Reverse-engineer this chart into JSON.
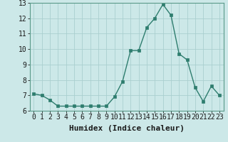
{
  "x": [
    0,
    1,
    2,
    3,
    4,
    5,
    6,
    7,
    8,
    9,
    10,
    11,
    12,
    13,
    14,
    15,
    16,
    17,
    18,
    19,
    20,
    21,
    22,
    23
  ],
  "y": [
    7.1,
    7.0,
    6.7,
    6.3,
    6.3,
    6.3,
    6.3,
    6.3,
    6.3,
    6.3,
    6.9,
    7.9,
    9.9,
    9.9,
    11.4,
    12.0,
    12.9,
    12.2,
    9.7,
    9.3,
    7.5,
    6.6,
    7.6,
    7.0
  ],
  "xlabel": "Humidex (Indice chaleur)",
  "ylim": [
    6,
    13
  ],
  "xlim": [
    -0.5,
    23.5
  ],
  "yticks": [
    6,
    7,
    8,
    9,
    10,
    11,
    12,
    13
  ],
  "xticks": [
    0,
    1,
    2,
    3,
    4,
    5,
    6,
    7,
    8,
    9,
    10,
    11,
    12,
    13,
    14,
    15,
    16,
    17,
    18,
    19,
    20,
    21,
    22,
    23
  ],
  "xtick_labels": [
    "0",
    "1",
    "2",
    "3",
    "4",
    "5",
    "6",
    "7",
    "8",
    "9",
    "10",
    "11",
    "12",
    "13",
    "14",
    "15",
    "16",
    "17",
    "18",
    "19",
    "20",
    "21",
    "22",
    "23"
  ],
  "line_color": "#2e7d6e",
  "marker_color": "#2e7d6e",
  "bg_color": "#cce8e8",
  "grid_color": "#aacfcf",
  "xlabel_fontsize": 8,
  "tick_fontsize": 7,
  "line_width": 1.0,
  "marker_size": 2.5
}
